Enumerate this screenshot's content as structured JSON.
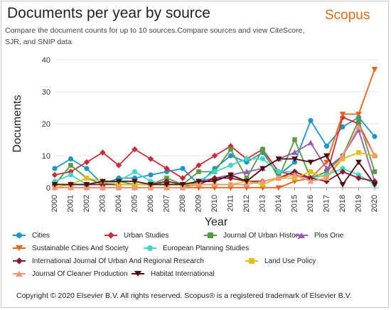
{
  "header": {
    "title": "Documents per year by source",
    "brand": "Scopus",
    "subtitle": "Compare the document counts for up to 10 sources.Compare sources and view CiteScore, SJR, and SNIP data"
  },
  "footer": {
    "copyright": "Copyright © 2020 Elsevier B.V. All rights reserved. Scopus® is a registered trademark of Elsevier B.V."
  },
  "chart_data": {
    "type": "line",
    "title": "Documents per year by source",
    "xlabel": "Year",
    "ylabel": "Documents",
    "x": [
      "2000",
      "2001",
      "2002",
      "2003",
      "2004",
      "2005",
      "2006",
      "2007",
      "2008",
      "2009",
      "2010",
      "2011",
      "2012",
      "2013",
      "2014",
      "2015",
      "2016",
      "2017",
      "2018",
      "2019",
      "2020"
    ],
    "ylim": [
      0,
      40
    ],
    "yticks": [
      0,
      10,
      20,
      30,
      40
    ],
    "grid": true,
    "legend_position": "bottom",
    "series": [
      {
        "name": "Cities",
        "color": "#2196c4",
        "marker": "circle",
        "values": [
          6,
          9,
          6,
          1,
          3,
          3,
          4,
          5,
          6,
          1,
          6,
          10,
          8,
          11,
          4,
          8,
          21,
          13,
          19,
          22,
          16
        ]
      },
      {
        "name": "Urban Studies",
        "color": "#c62f3a",
        "marker": "diamond",
        "values": [
          4,
          5,
          8,
          11,
          7,
          12,
          9,
          6,
          3,
          7,
          10,
          13,
          9,
          12,
          5,
          4,
          3,
          4,
          22,
          20,
          10
        ]
      },
      {
        "name": "Journal Of Urban History",
        "color": "#5a9a45",
        "marker": "square",
        "values": [
          1,
          7,
          3,
          1,
          2,
          1,
          1,
          3,
          1,
          5,
          5,
          12,
          3,
          12,
          3,
          15,
          3,
          5,
          10,
          21,
          5
        ]
      },
      {
        "name": "Plos One",
        "color": "#9b59b6",
        "marker": "triangle",
        "values": [
          0,
          0,
          0,
          0,
          0,
          0,
          0,
          0,
          0,
          2,
          3,
          4,
          5,
          6,
          9,
          11,
          14,
          6,
          10,
          18,
          2
        ]
      },
      {
        "name": "Sustainable Cities And Society",
        "color": "#e8641e",
        "marker": "triangle-down",
        "values": [
          0,
          0,
          0,
          0,
          0,
          0,
          0,
          0,
          0,
          0,
          0,
          0,
          0,
          0,
          0,
          2,
          3,
          8,
          23,
          23,
          37
        ]
      },
      {
        "name": "European Planning Studies",
        "color": "#3fd6c8",
        "marker": "circle",
        "values": [
          2,
          4,
          1,
          1,
          2,
          5,
          2,
          1,
          1,
          2,
          5,
          7,
          9,
          9,
          5,
          5,
          3,
          4,
          6,
          4,
          1
        ]
      },
      {
        "name": "International Journal Of Urban And Regional Research",
        "color": "#8b1a2e",
        "marker": "diamond",
        "values": [
          1,
          1,
          1,
          1,
          1,
          1,
          1,
          2,
          1,
          1,
          3,
          3,
          2,
          2,
          3,
          5,
          3,
          2,
          5,
          3,
          2
        ]
      },
      {
        "name": "Land Use Policy",
        "color": "#e0c01a",
        "marker": "square",
        "values": [
          0,
          1,
          3,
          2,
          1,
          1,
          1,
          1,
          1,
          1,
          1,
          1,
          2,
          1,
          3,
          3,
          5,
          3,
          9,
          11,
          10
        ]
      },
      {
        "name": "Journal Of Cleaner Production",
        "color": "#f0967a",
        "marker": "triangle",
        "values": [
          0,
          0,
          0,
          0,
          0,
          0,
          0,
          0,
          0,
          1,
          1,
          1,
          1,
          2,
          3,
          4,
          2,
          3,
          10,
          19,
          10
        ]
      },
      {
        "name": "Habitat International",
        "color": "#4a1010",
        "marker": "triangle-down",
        "values": [
          1,
          1,
          1,
          2,
          2,
          2,
          1,
          1,
          1,
          2,
          2,
          4,
          2,
          6,
          9,
          9,
          8,
          10,
          1,
          8,
          1
        ]
      }
    ]
  }
}
